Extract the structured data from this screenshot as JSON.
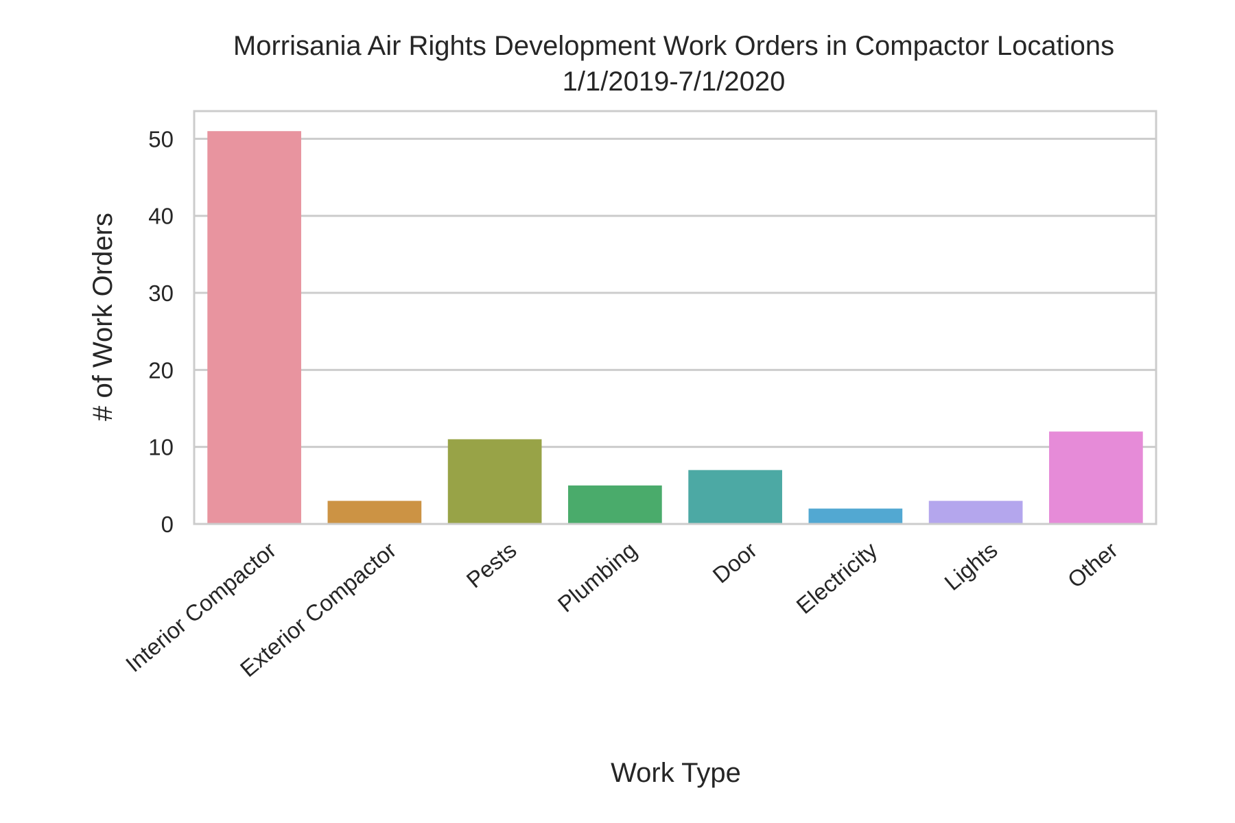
{
  "chart_data": {
    "type": "bar",
    "title": "Morrisania Air Rights Development Work Orders in Compactor Locations",
    "subtitle": "1/1/2019-7/1/2020",
    "xlabel": "Work Type",
    "ylabel": "# of Work Orders",
    "categories": [
      "Interior Compactor",
      "Exterior Compactor",
      "Pests",
      "Plumbing",
      "Door",
      "Electricity",
      "Lights",
      "Other"
    ],
    "values": [
      51,
      3,
      11,
      5,
      7,
      2,
      3,
      12
    ],
    "colors": [
      "#e8949f",
      "#cc9344",
      "#98a347",
      "#4aab6b",
      "#4ca9a4",
      "#52a8d2",
      "#b4a6ed",
      "#e68bd8"
    ],
    "ylim": [
      0,
      53.6
    ],
    "yticks": [
      0,
      10,
      20,
      30,
      40,
      50
    ],
    "grid": "horizontal",
    "legend": "none",
    "background": "#ffffff",
    "grid_color": "#cccccc",
    "frame_color": "#cccccc"
  }
}
